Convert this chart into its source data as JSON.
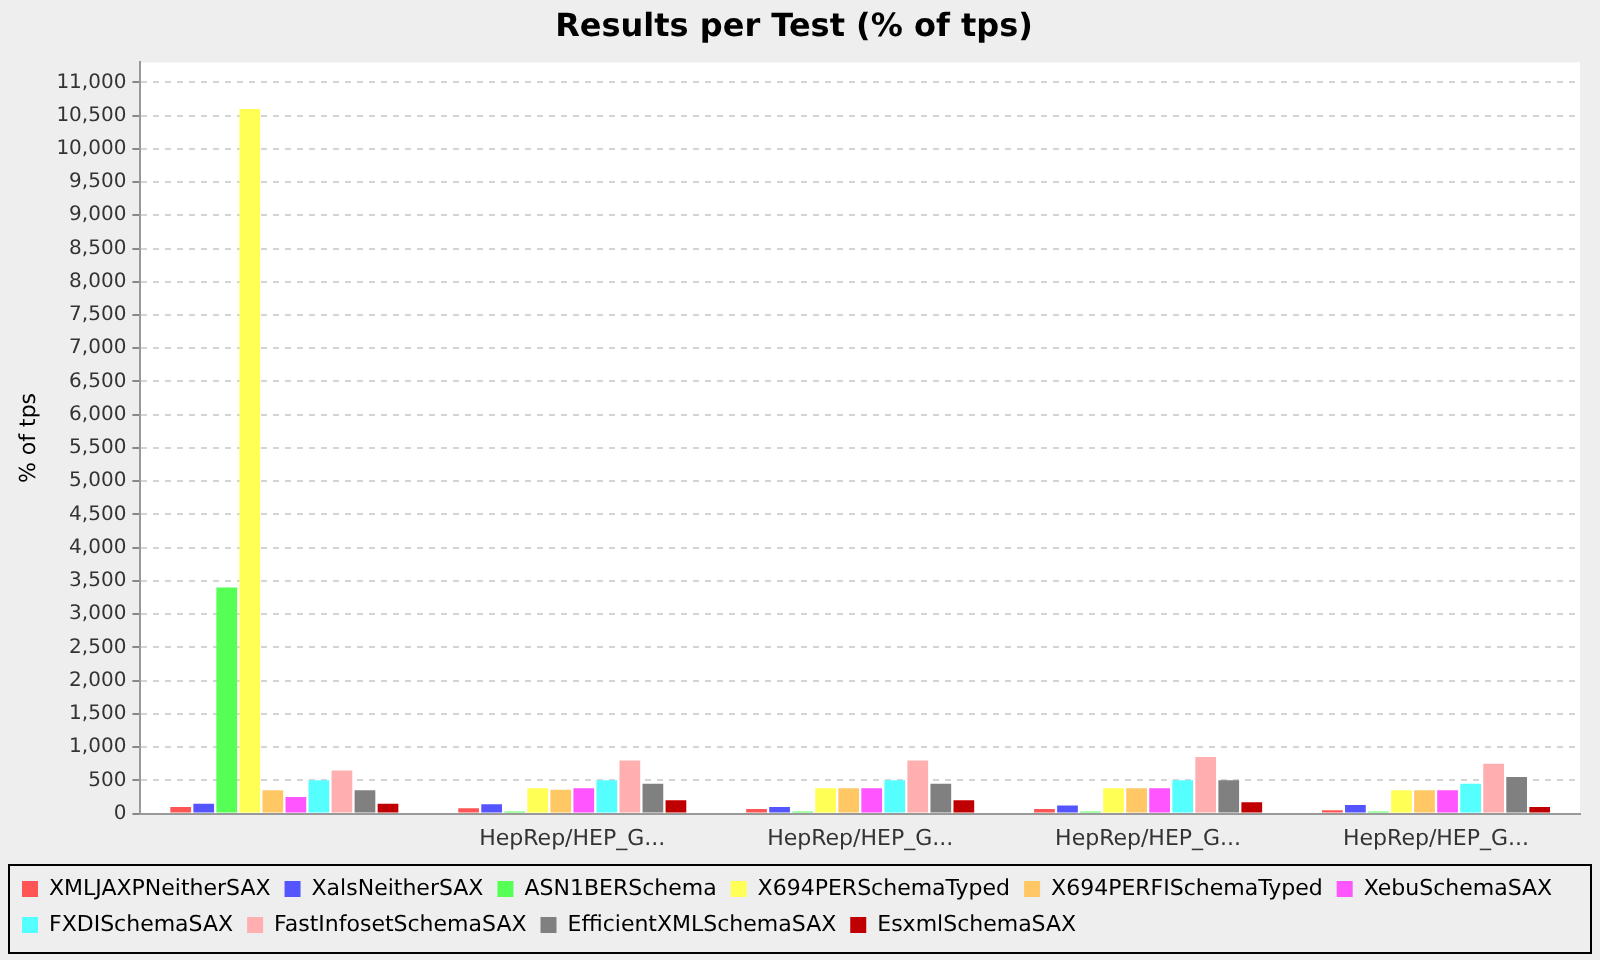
{
  "chart_data": {
    "type": "bar",
    "title": "Results per Test (% of tps)",
    "ylabel": "% of tps",
    "categories": [
      null,
      "HepRep/HEP_G...",
      "HepRep/HEP_G...",
      "HepRep/HEP_G...",
      "HepRep/HEP_G..."
    ],
    "series": [
      {
        "name": "XMLJAXPNeitherSAX",
        "color": "#ff5555",
        "values": [
          100,
          80,
          70,
          70,
          50
        ]
      },
      {
        "name": "XalsNeitherSAX",
        "color": "#5555ff",
        "values": [
          150,
          140,
          100,
          120,
          130
        ]
      },
      {
        "name": "ASN1BERSchema",
        "color": "#55ff55",
        "values": [
          3400,
          30,
          30,
          30,
          30
        ]
      },
      {
        "name": "X694PERSchemaTyped",
        "color": "#ffff55",
        "values": [
          10600,
          380,
          380,
          380,
          350
        ]
      },
      {
        "name": "X694PERFISchemaTyped",
        "color": "#ffc864",
        "values": [
          350,
          360,
          380,
          380,
          350
        ]
      },
      {
        "name": "XebuSchemaSAX",
        "color": "#ff55ff",
        "values": [
          250,
          380,
          380,
          380,
          350
        ]
      },
      {
        "name": "FXDISchemaSAX",
        "color": "#55ffff",
        "values": [
          500,
          500,
          500,
          500,
          450
        ]
      },
      {
        "name": "FastInfosetSchemaSAX",
        "color": "#ffafaf",
        "values": [
          650,
          800,
          800,
          850,
          750
        ]
      },
      {
        "name": "EfficientXMLSchemaSAX",
        "color": "#808080",
        "values": [
          350,
          450,
          450,
          500,
          550
        ]
      },
      {
        "name": "EsxmlSchemaSAX",
        "color": "#c00000",
        "values": [
          150,
          200,
          200,
          170,
          100
        ]
      }
    ],
    "ylim": [
      0,
      11300
    ],
    "yticks": [
      0,
      500,
      {
        "value": 1000,
        "label": "1,000"
      },
      {
        "value": 1500,
        "label": "1,500"
      },
      {
        "value": 2000,
        "label": "2,000"
      },
      {
        "value": 2500,
        "label": "2,500"
      },
      {
        "value": 3000,
        "label": "3,000"
      },
      {
        "value": 3500,
        "label": "3,500"
      },
      {
        "value": 4000,
        "label": "4,000"
      },
      {
        "value": 4500,
        "label": "4,500"
      },
      {
        "value": 5000,
        "label": "5,000"
      },
      {
        "value": 5500,
        "label": "5,500"
      },
      {
        "value": 6000,
        "label": "6,000"
      },
      {
        "value": 6500,
        "label": "6,500"
      },
      {
        "value": 7000,
        "label": "7,000"
      },
      {
        "value": 7500,
        "label": "7,500"
      },
      {
        "value": 8000,
        "label": "8,000"
      },
      {
        "value": 8500,
        "label": "8,500"
      },
      {
        "value": 9000,
        "label": "9,000"
      },
      {
        "value": 9500,
        "label": "9,500"
      },
      {
        "value": 10000,
        "label": "10,000"
      },
      {
        "value": 10500,
        "label": "10,500"
      },
      {
        "value": 11000,
        "label": "11,000"
      }
    ],
    "grid": "y",
    "legend": "bottom"
  }
}
